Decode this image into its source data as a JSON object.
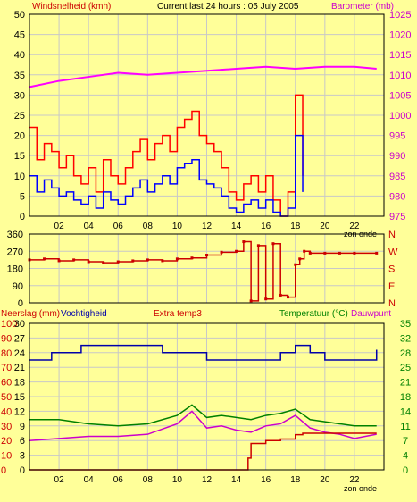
{
  "colors": {
    "background": "#ffff99",
    "frame": "#000000",
    "grid": "#c8c8c8",
    "wind_gust": "#ff0000",
    "wind_avg": "#0000ff",
    "barometer": "#ff00ff",
    "direction": "#cc0000",
    "precip": "#cc0000",
    "humidity": "#0000aa",
    "temperature": "#008000",
    "dewpoint": "#cc00cc",
    "header_red": "#cc0000",
    "header_magenta": "#cc00cc",
    "header_green": "#008000",
    "header_black": "#000000"
  },
  "header": {
    "left_label": "Windsnelheid (kmh)",
    "center_label": "Current last 24 hours : 05 July 2005",
    "right_label": "Barometer (mb)"
  },
  "panel3_header": {
    "precip_label": "Neerslag (mm)",
    "humidity_label": "Vochtigheid",
    "extra_label": "Extra temp3",
    "temp_label": "Temperatuur (°C)",
    "dew_label": "Dauwpunt"
  },
  "footer": {
    "sunset_label_mid": "zon onde",
    "sunset_label_bottom": "zon onde"
  },
  "chart_data": [
    {
      "type": "line",
      "x_ticks": [
        "02",
        "04",
        "06",
        "08",
        "10",
        "12",
        "14",
        "16",
        "18",
        "20",
        "22"
      ],
      "left_axis": {
        "ticks": [
          "0",
          "5",
          "10",
          "15",
          "20",
          "25",
          "30",
          "35",
          "40",
          "45",
          "50"
        ],
        "ylim": [
          0,
          50
        ]
      },
      "right_axis": {
        "ticks": [
          "975",
          "980",
          "985",
          "990",
          "995",
          "1000",
          "1005",
          "1010",
          "1015",
          "1020",
          "1025"
        ],
        "ylim": [
          975,
          1025
        ]
      },
      "grid": true,
      "series": [
        {
          "name": "Windsnelheid (kmh)",
          "role": "gust",
          "x": [
            0,
            0.5,
            1,
            1.5,
            2,
            2.5,
            3,
            3.5,
            4,
            4.5,
            5,
            5.5,
            6,
            6.5,
            7,
            7.5,
            8,
            8.5,
            9,
            9.5,
            10,
            10.5,
            11,
            11.5,
            12,
            12.5,
            13,
            13.5,
            14,
            14.5,
            15,
            15.5,
            16,
            16.5,
            17,
            17.5,
            18,
            18.5
          ],
          "y": [
            22,
            14,
            18,
            16,
            12,
            15,
            10,
            8,
            12,
            6,
            14,
            10,
            8,
            12,
            16,
            19,
            14,
            18,
            20,
            16,
            22,
            24,
            26,
            20,
            18,
            16,
            12,
            6,
            4,
            8,
            10,
            6,
            10,
            4,
            0,
            6,
            30,
            10
          ]
        },
        {
          "name": "Windsnelheid avg",
          "role": "avg",
          "x": [
            0,
            0.5,
            1,
            1.5,
            2,
            2.5,
            3,
            3.5,
            4,
            4.5,
            5,
            5.5,
            6,
            6.5,
            7,
            7.5,
            8,
            8.5,
            9,
            9.5,
            10,
            10.5,
            11,
            11.5,
            12,
            12.5,
            13,
            13.5,
            14,
            14.5,
            15,
            15.5,
            16,
            16.5,
            17,
            17.5,
            18,
            18.5
          ],
          "y": [
            10,
            6,
            9,
            7,
            5,
            6,
            4,
            3,
            5,
            2,
            6,
            4,
            3,
            5,
            7,
            9,
            6,
            8,
            10,
            8,
            12,
            13,
            14,
            9,
            8,
            7,
            5,
            2,
            1,
            3,
            4,
            2,
            4,
            1,
            0,
            2,
            20,
            6
          ]
        },
        {
          "name": "Barometer (mb)",
          "axis": "right",
          "x": [
            0,
            2,
            4,
            6,
            8,
            10,
            12,
            14,
            16,
            18,
            20,
            22,
            23.5
          ],
          "y": [
            1007,
            1008.5,
            1009.5,
            1010.5,
            1010,
            1010.5,
            1011,
            1011.5,
            1012,
            1011.5,
            1012,
            1012,
            1011.5
          ]
        }
      ]
    },
    {
      "type": "scatter",
      "x_ticks": [
        "02",
        "04",
        "06",
        "08",
        "10",
        "12",
        "14",
        "16",
        "18",
        "20",
        "22"
      ],
      "left_axis": {
        "ticks": [
          "0",
          "90",
          "180",
          "270",
          "360"
        ],
        "ylim": [
          0,
          360
        ]
      },
      "right_labels": [
        "N",
        "W",
        "S",
        "E",
        "N"
      ],
      "series": [
        {
          "name": "Windrichting",
          "x": [
            0,
            1,
            2,
            3,
            4,
            5,
            6,
            7,
            8,
            9,
            10,
            11,
            12,
            13,
            14,
            14.5,
            15,
            15.5,
            16,
            16.5,
            17,
            17.5,
            18,
            18.3,
            18.6,
            19,
            20,
            21,
            22,
            23.5
          ],
          "y": [
            225,
            230,
            220,
            225,
            215,
            210,
            215,
            220,
            225,
            220,
            230,
            235,
            250,
            265,
            270,
            320,
            10,
            300,
            20,
            310,
            40,
            30,
            200,
            230,
            270,
            260,
            260,
            260,
            260,
            260
          ]
        }
      ]
    },
    {
      "type": "line",
      "x_ticks": [
        "02",
        "04",
        "06",
        "08",
        "10",
        "12",
        "14",
        "16",
        "18",
        "20",
        "22"
      ],
      "left_axis_precip": {
        "ticks": [
          "0",
          "10",
          "20",
          "30",
          "40",
          "50",
          "60",
          "70",
          "80",
          "90",
          "100"
        ],
        "ylim": [
          0,
          100
        ]
      },
      "left_axis_humidity": {
        "ticks": [
          "0",
          "3",
          "6",
          "9",
          "12",
          "15",
          "18",
          "21",
          "24",
          "27",
          "30"
        ]
      },
      "right_axis": {
        "ticks": [
          "0",
          "4",
          "7",
          "11",
          "14",
          "18",
          "21",
          "25",
          "28",
          "32",
          "35"
        ],
        "ylim": [
          0,
          35
        ]
      },
      "grid": true,
      "series": [
        {
          "name": "Vochtigheid",
          "role": "humidity",
          "x": [
            0,
            1,
            1.5,
            3,
            3.5,
            4,
            5,
            6,
            7,
            8,
            9,
            10,
            11,
            12,
            13,
            14,
            15,
            16,
            17,
            18,
            19,
            20,
            21,
            22,
            23.5
          ],
          "y": [
            75,
            75,
            80,
            80,
            85,
            85,
            85,
            85,
            85,
            85,
            80,
            80,
            80,
            75,
            75,
            75,
            75,
            75,
            80,
            85,
            80,
            75,
            75,
            75,
            82
          ]
        },
        {
          "name": "Temperatuur (°C)",
          "role": "temp",
          "x": [
            0,
            2,
            4,
            6,
            8,
            10,
            11,
            12,
            13,
            14,
            15,
            16,
            17,
            18,
            19,
            20,
            21,
            22,
            23.5
          ],
          "y": [
            12,
            12,
            11,
            10.5,
            11,
            13,
            15.5,
            12.5,
            13,
            12.5,
            12,
            13,
            13.5,
            14.5,
            12,
            11.5,
            11,
            10.5,
            10.5
          ]
        },
        {
          "name": "Dauwpunt",
          "role": "dew",
          "x": [
            0,
            2,
            4,
            6,
            8,
            10,
            11,
            12,
            13,
            14,
            15,
            16,
            17,
            18,
            19,
            20,
            21,
            22,
            23.5
          ],
          "y": [
            7,
            7.5,
            8,
            8,
            8.5,
            11,
            14,
            10,
            10.5,
            9.5,
            9,
            10.5,
            11,
            13,
            10,
            9,
            8.5,
            7.5,
            8.5
          ]
        },
        {
          "name": "Neerslag (mm)",
          "role": "precip",
          "x": [
            0,
            14,
            14.8,
            15,
            16,
            17,
            18,
            18.5,
            20,
            22,
            23.5
          ],
          "y": [
            0,
            0,
            8,
            18,
            20,
            21,
            24,
            25,
            25,
            25,
            25
          ]
        }
      ]
    }
  ]
}
